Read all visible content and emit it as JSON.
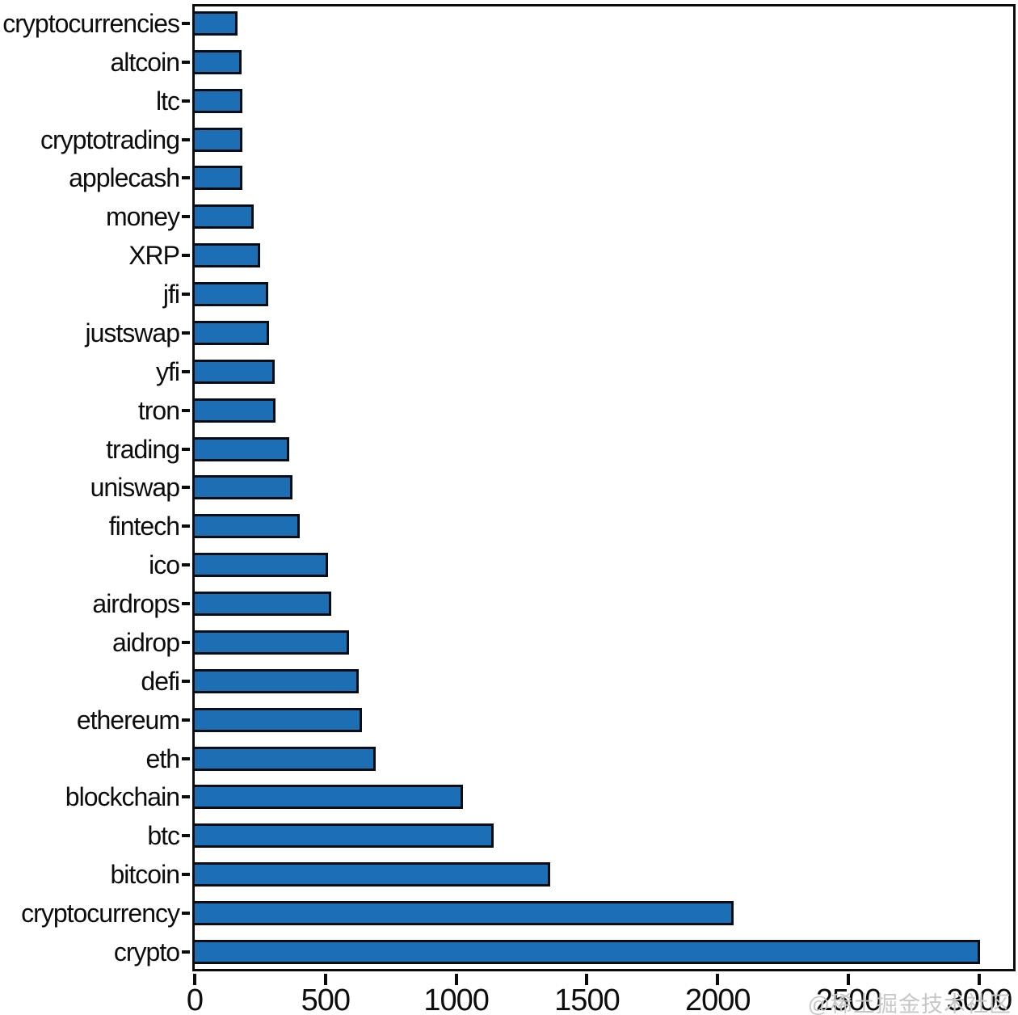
{
  "chart_data": {
    "type": "bar",
    "orientation": "horizontal",
    "title": "",
    "xlabel": "",
    "ylabel": "",
    "grid": false,
    "legend": null,
    "categories": [
      "cryptocurrencies",
      "altcoin",
      "ltc",
      "cryptotrading",
      "applecash",
      "money",
      "XRP",
      "jfi",
      "justswap",
      "yfi",
      "tron",
      "trading",
      "uniswap",
      "fintech",
      "ico",
      "airdrops",
      "aidrop",
      "defi",
      "ethereum",
      "eth",
      "blockchain",
      "btc",
      "bitcoin",
      "cryptocurrency",
      "crypto"
    ],
    "values": [
      155,
      170,
      171,
      172,
      173,
      215,
      240,
      272,
      274,
      296,
      300,
      350,
      365,
      390,
      500,
      510,
      580,
      615,
      630,
      680,
      1015,
      1130,
      1345,
      2045,
      2985
    ],
    "x_ticks": [
      0,
      500,
      1000,
      1500,
      2000,
      2500,
      3000
    ],
    "xlim": [
      0,
      3130
    ],
    "bar_color": "#1c6fb5",
    "bar_border_color": "#0a0e14",
    "axis_color": "#0b0b0b"
  },
  "watermark": {
    "text": "@稀土掘金技术社区",
    "color": "#c7c7c7"
  }
}
